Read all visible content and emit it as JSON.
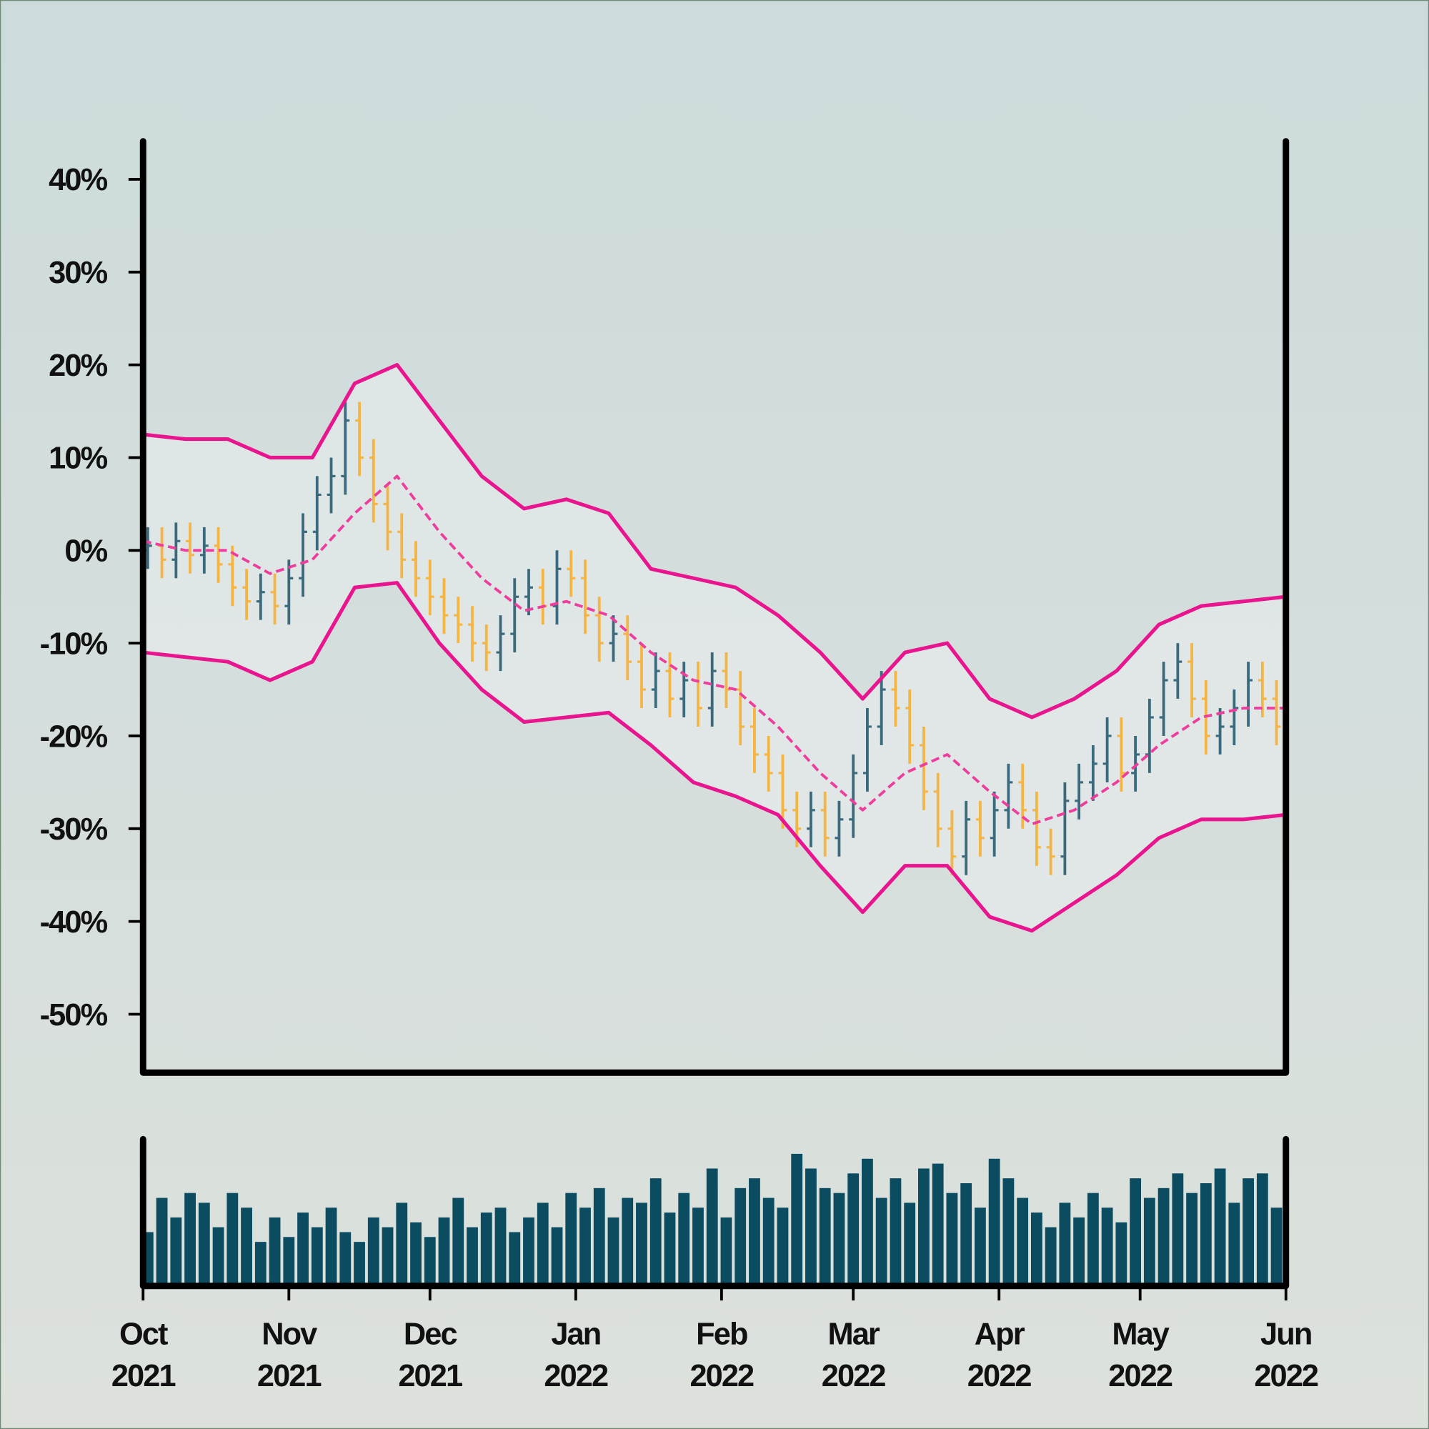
{
  "chart_data": {
    "type": "ohlc",
    "xlim": [
      0,
      243
    ],
    "xticks": [
      {
        "value": 0,
        "label": [
          "Oct",
          "2021"
        ]
      },
      {
        "value": 31,
        "label": [
          "Nov",
          "2021"
        ]
      },
      {
        "value": 61,
        "label": [
          "Dec",
          "2021"
        ]
      },
      {
        "value": 92,
        "label": [
          "Jan",
          "2022"
        ]
      },
      {
        "value": 123,
        "label": [
          "Feb",
          "2022"
        ]
      },
      {
        "value": 151,
        "label": [
          "Mar",
          "2022"
        ]
      },
      {
        "value": 182,
        "label": [
          "Apr",
          "2022"
        ]
      },
      {
        "value": 212,
        "label": [
          "May",
          "2022"
        ]
      },
      {
        "value": 243,
        "label": [
          "Jun",
          "2022"
        ]
      }
    ],
    "ylim": [
      -56.3,
      44.1
    ],
    "yticks": [
      {
        "value": 40,
        "label": "40%"
      },
      {
        "value": 30,
        "label": "30%"
      },
      {
        "value": 20,
        "label": "20%"
      },
      {
        "value": 10,
        "label": "10%"
      },
      {
        "value": 0,
        "label": "0%"
      },
      {
        "value": -10,
        "label": "-10%"
      },
      {
        "value": -20,
        "label": "-20%"
      },
      {
        "value": -30,
        "label": "-30%"
      },
      {
        "value": -40,
        "label": "-40%"
      },
      {
        "value": -50,
        "label": "-50%"
      }
    ],
    "up_color": "#3b6a7c",
    "down_color": "#f4b545",
    "x": [
      1,
      4,
      7,
      10,
      13,
      16,
      19,
      22,
      25,
      28,
      31,
      34,
      37,
      40,
      43,
      46,
      49,
      52,
      55,
      58,
      61,
      64,
      67,
      70,
      73,
      76,
      79,
      82,
      85,
      88,
      91,
      94,
      97,
      100,
      103,
      106,
      109,
      112,
      115,
      118,
      121,
      124,
      127,
      130,
      133,
      136,
      139,
      142,
      145,
      148,
      151,
      154,
      157,
      160,
      163,
      166,
      169,
      172,
      175,
      178,
      181,
      184,
      187,
      190,
      193,
      196,
      199,
      202,
      205,
      208,
      211,
      214,
      217,
      220,
      223,
      226,
      229,
      232,
      235,
      238,
      241
    ],
    "open": [
      0,
      0.5,
      -1,
      1,
      -0.5,
      0.5,
      -1.5,
      -4,
      -5.5,
      -4.5,
      -6,
      -3,
      2,
      6,
      8,
      14,
      10,
      5,
      2,
      -1,
      -3,
      -5,
      -7,
      -8,
      -10,
      -11,
      -9,
      -5,
      -4,
      -6,
      -2,
      -3,
      -7,
      -10,
      -9,
      -12,
      -15,
      -13,
      -16,
      -14,
      -17,
      -13,
      -15,
      -19,
      -22,
      -24,
      -28,
      -30,
      -28,
      -31,
      -29,
      -24,
      -19,
      -15,
      -17,
      -21,
      -26,
      -30,
      -33,
      -29,
      -31,
      -28,
      -25,
      -28,
      -32,
      -33,
      -27,
      -25,
      -23,
      -20,
      -24,
      -22,
      -18,
      -14,
      -12,
      -16,
      -20,
      -19,
      -17,
      -14,
      -16
    ],
    "high": [
      2.5,
      2.5,
      3,
      3,
      2.5,
      2.5,
      0.5,
      -2,
      -2.5,
      -2.5,
      -1,
      4,
      8,
      10,
      16,
      16,
      12,
      7,
      4,
      1,
      -1,
      -3,
      -5,
      -6,
      -8,
      -7,
      -3,
      -2,
      -2,
      0,
      0,
      -1,
      -5,
      -7,
      -7,
      -10,
      -11,
      -11,
      -12,
      -12,
      -11,
      -11,
      -13,
      -17,
      -20,
      -22,
      -26,
      -26,
      -26,
      -27,
      -22,
      -17,
      -13,
      -13,
      -15,
      -19,
      -24,
      -28,
      -27,
      -27,
      -26,
      -23,
      -23,
      -26,
      -30,
      -25,
      -23,
      -21,
      -18,
      -18,
      -20,
      -16,
      -12,
      -10,
      -10,
      -14,
      -17,
      -15,
      -12,
      -12,
      -14
    ],
    "low": [
      -2,
      -3,
      -3,
      -2.5,
      -2.5,
      -3.5,
      -6,
      -7.5,
      -7.5,
      -8,
      -8,
      -5,
      0,
      4,
      6,
      8,
      3,
      0,
      -3,
      -5,
      -7,
      -9,
      -10,
      -12,
      -13,
      -13,
      -11,
      -7,
      -8,
      -8,
      -5,
      -9,
      -12,
      -12,
      -14,
      -17,
      -17,
      -18,
      -18,
      -19,
      -19,
      -17,
      -21,
      -24,
      -26,
      -30,
      -32,
      -32,
      -33,
      -33,
      -31,
      -26,
      -21,
      -19,
      -23,
      -28,
      -32,
      -35,
      -35,
      -33,
      -33,
      -30,
      -30,
      -34,
      -35,
      -35,
      -29,
      -27,
      -25,
      -26,
      -26,
      -24,
      -20,
      -16,
      -18,
      -22,
      -22,
      -21,
      -19,
      -18,
      -21
    ],
    "close": [
      0.5,
      -1,
      1,
      -0.5,
      0.5,
      -1.5,
      -4,
      -5.5,
      -4.5,
      -6,
      -3,
      2,
      6,
      8,
      14,
      10,
      5,
      2,
      -1,
      -3,
      -5,
      -7,
      -8,
      -10,
      -11,
      -9,
      -5,
      -4,
      -6,
      -2,
      -3,
      -7,
      -10,
      -9,
      -12,
      -15,
      -13,
      -16,
      -14,
      -17,
      -13,
      -15,
      -19,
      -22,
      -24,
      -28,
      -30,
      -28,
      -31,
      -29,
      -24,
      -19,
      -15,
      -17,
      -21,
      -26,
      -30,
      -33,
      -29,
      -31,
      -28,
      -25,
      -28,
      -32,
      -33,
      -27,
      -25,
      -23,
      -20,
      -24,
      -22,
      -18,
      -14,
      -12,
      -16,
      -20,
      -19,
      -17,
      -14,
      -16,
      -19
    ],
    "bands": {
      "color": "#e8158e",
      "x": [
        0,
        9,
        18,
        27,
        36,
        45,
        54,
        63,
        72,
        81,
        90,
        99,
        108,
        117,
        126,
        135,
        144,
        153,
        162,
        171,
        180,
        189,
        198,
        207,
        216,
        225,
        234,
        243
      ],
      "upper": [
        12.5,
        12,
        12,
        10,
        10,
        18,
        20,
        14,
        8,
        4.5,
        5.5,
        4,
        -2,
        -3,
        -4,
        -7,
        -11,
        -16,
        -11,
        -10,
        -16,
        -18,
        -16,
        -13,
        -8,
        -6,
        -5.5,
        -5
      ],
      "middle": [
        1,
        0,
        0,
        -2.5,
        -1,
        4,
        8,
        2,
        -3,
        -6.5,
        -5.5,
        -7,
        -11,
        -14,
        -15,
        -19,
        -24,
        -28,
        -24,
        -22,
        -26,
        -29.5,
        -28,
        -25,
        -21,
        -18,
        -17,
        -17
      ],
      "lower": [
        -11,
        -11.5,
        -12,
        -14,
        -12,
        -4,
        -3.5,
        -10,
        -15,
        -18.5,
        -18,
        -17.5,
        -21,
        -25,
        -26.5,
        -28.5,
        -34,
        -39,
        -34,
        -34,
        -39.5,
        -41,
        -38,
        -35,
        -31,
        -29,
        -29,
        -28.5
      ]
    },
    "volume": {
      "color": "#0b4c60",
      "ylim": [
        0,
        150
      ],
      "values": [
        55,
        90,
        70,
        95,
        85,
        60,
        95,
        80,
        45,
        70,
        50,
        75,
        60,
        80,
        55,
        45,
        70,
        60,
        85,
        65,
        50,
        70,
        90,
        60,
        75,
        80,
        55,
        70,
        85,
        60,
        95,
        80,
        100,
        70,
        90,
        85,
        110,
        75,
        95,
        80,
        120,
        70,
        100,
        110,
        90,
        80,
        135,
        120,
        100,
        95,
        115,
        130,
        90,
        110,
        85,
        120,
        125,
        95,
        105,
        80,
        130,
        110,
        90,
        75,
        60,
        85,
        70,
        95,
        80,
        65,
        110,
        90,
        100,
        115,
        95,
        105,
        120,
        85,
        110,
        115,
        80
      ]
    }
  }
}
